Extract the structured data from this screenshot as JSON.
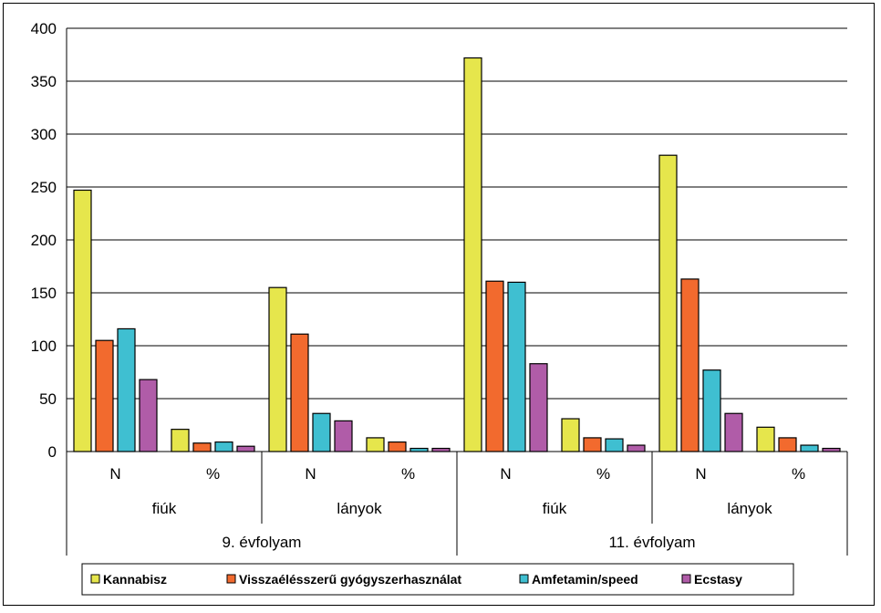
{
  "colors": {
    "Kannabisz": "#e6e64c",
    "Visszaélésszerű gyógyszerhasználat": "#f26a2e",
    "Amfetamin/speed": "#3fbfd1",
    "Ecstasy": "#b05ca8",
    "gridline": "#000000"
  },
  "chart_data": {
    "type": "bar",
    "title": "",
    "xlabel": "",
    "ylabel": "",
    "ylim": [
      0,
      400
    ],
    "yticks": [
      0,
      50,
      100,
      150,
      200,
      250,
      300,
      350,
      400
    ],
    "grid": true,
    "legend_position": "bottom",
    "categories": [
      [
        "9. évfolyam",
        "fiúk",
        "N"
      ],
      [
        "9. évfolyam",
        "fiúk",
        "%"
      ],
      [
        "9. évfolyam",
        "lányok",
        "N"
      ],
      [
        "9. évfolyam",
        "lányok",
        "%"
      ],
      [
        "11. évfolyam",
        "fiúk",
        "N"
      ],
      [
        "11. évfolyam",
        "fiúk",
        "%"
      ],
      [
        "11. évfolyam",
        "lányok",
        "N"
      ],
      [
        "11. évfolyam",
        "lányok",
        "%"
      ]
    ],
    "level3_labels": [
      "N",
      "%",
      "N",
      "%",
      "N",
      "%",
      "N",
      "%"
    ],
    "level2_labels": [
      "fiúk",
      "lányok",
      "fiúk",
      "lányok"
    ],
    "level1_labels": [
      "9. évfolyam",
      "11. évfolyam"
    ],
    "series": [
      {
        "name": "Kannabisz",
        "values": [
          247,
          21,
          155,
          13,
          372,
          31,
          280,
          23
        ]
      },
      {
        "name": "Visszaélésszerű gyógyszerhasználat",
        "values": [
          105,
          8,
          111,
          9,
          161,
          13,
          163,
          13
        ]
      },
      {
        "name": "Amfetamin/speed",
        "values": [
          116,
          9,
          36,
          3,
          160,
          12,
          77,
          6
        ]
      },
      {
        "name": "Ecstasy",
        "values": [
          68,
          5,
          29,
          3,
          83,
          6,
          36,
          3
        ]
      }
    ]
  }
}
